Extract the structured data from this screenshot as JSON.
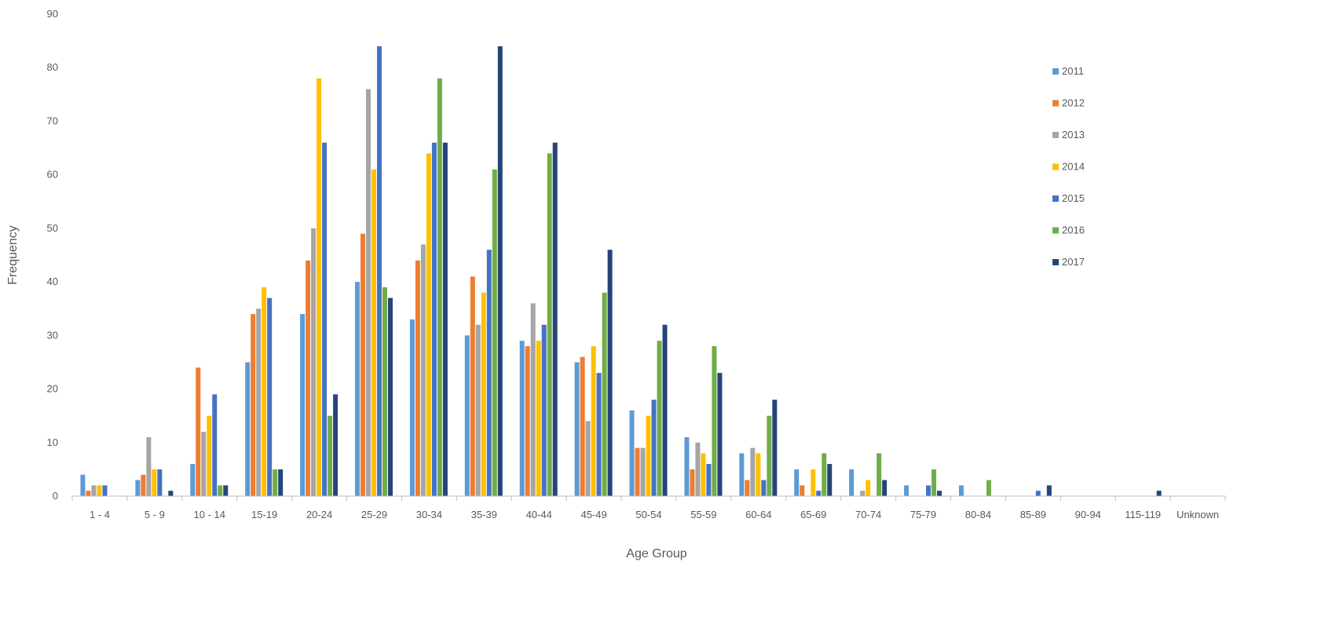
{
  "chart_data": {
    "type": "bar",
    "xlabel": "Age Group",
    "ylabel": "Frequency",
    "ylim": [
      0,
      90
    ],
    "ytick_step": 10,
    "grid": false,
    "legend_position": "right",
    "categories": [
      "1 - 4",
      "5 - 9",
      "10 - 14",
      "15-19",
      "20-24",
      "25-29",
      "30-34",
      "35-39",
      "40-44",
      "45-49",
      "50-54",
      "55-59",
      "60-64",
      "65-69",
      "70-74",
      "75-79",
      "80-84",
      "85-89",
      "90-94",
      "115-119",
      "Unknown"
    ],
    "series": [
      {
        "name": "2011",
        "color": "#5B9BD5",
        "values": [
          4,
          3,
          6,
          25,
          34,
          40,
          33,
          30,
          29,
          25,
          16,
          11,
          8,
          5,
          5,
          2,
          2,
          0,
          0,
          0,
          0
        ]
      },
      {
        "name": "2012",
        "color": "#ED7D31",
        "values": [
          1,
          4,
          24,
          34,
          44,
          49,
          44,
          41,
          28,
          26,
          9,
          5,
          3,
          2,
          0,
          0,
          0,
          0,
          0,
          0,
          0
        ]
      },
      {
        "name": "2013",
        "color": "#A5A5A5",
        "values": [
          2,
          11,
          12,
          35,
          50,
          76,
          47,
          32,
          36,
          14,
          9,
          10,
          9,
          0,
          1,
          0,
          0,
          0,
          0,
          0,
          0
        ]
      },
      {
        "name": "2014",
        "color": "#FFC000",
        "values": [
          2,
          5,
          15,
          39,
          78,
          61,
          64,
          38,
          29,
          28,
          15,
          8,
          8,
          5,
          3,
          0,
          0,
          0,
          0,
          0,
          0
        ]
      },
      {
        "name": "2015",
        "color": "#4472C4",
        "values": [
          2,
          5,
          19,
          37,
          66,
          84,
          66,
          46,
          32,
          23,
          18,
          6,
          3,
          1,
          0,
          2,
          0,
          1,
          0,
          0,
          0
        ]
      },
      {
        "name": "2016",
        "color": "#70AD47",
        "values": [
          0,
          0,
          2,
          5,
          15,
          39,
          78,
          61,
          64,
          38,
          29,
          28,
          15,
          8,
          8,
          5,
          3,
          0,
          0,
          0,
          0
        ]
      },
      {
        "name": "2017",
        "color": "#264478",
        "values": [
          0,
          1,
          2,
          5,
          19,
          37,
          66,
          84,
          66,
          46,
          32,
          23,
          18,
          6,
          3,
          1,
          0,
          2,
          0,
          1,
          0
        ]
      }
    ]
  }
}
